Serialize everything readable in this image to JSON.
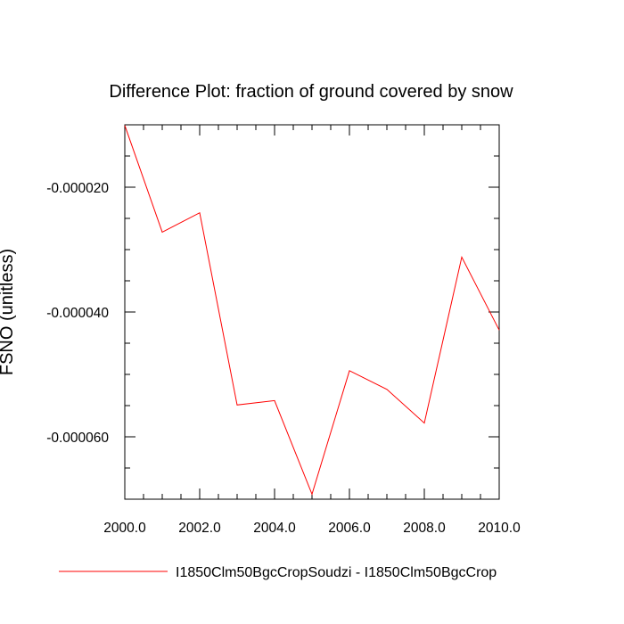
{
  "chart_data": {
    "type": "line",
    "title": "Difference Plot: fraction of ground covered by snow",
    "xlabel": "",
    "ylabel": "FSNO  (unitless)",
    "xlim": [
      2000.0,
      2010.0
    ],
    "ylim": [
      -7e-05,
      -1e-05
    ],
    "x_ticks": [
      2000.0,
      2002.0,
      2004.0,
      2006.0,
      2008.0,
      2010.0
    ],
    "x_tick_labels": [
      "2000.0",
      "2002.0",
      "2004.0",
      "2006.0",
      "2008.0",
      "2010.0"
    ],
    "y_ticks": [
      -2e-05,
      -4e-05,
      -6e-05
    ],
    "y_tick_labels": [
      "-0.000020",
      "-0.000040",
      "-0.000060"
    ],
    "grid": false,
    "legend_position": "bottom",
    "series": [
      {
        "name": "I1850Clm50BgcCropSoudzi - I1850Clm50BgcCrop",
        "color": "#ff0000",
        "x": [
          2000,
          2001,
          2002,
          2003,
          2004,
          2005,
          2006,
          2007,
          2008,
          2009,
          2010
        ],
        "values": [
          -1.01e-05,
          -2.72e-05,
          -2.41e-05,
          -5.49e-05,
          -5.42e-05,
          -6.92e-05,
          -4.94e-05,
          -5.24e-05,
          -5.78e-05,
          -3.12e-05,
          -4.29e-05
        ]
      }
    ]
  }
}
